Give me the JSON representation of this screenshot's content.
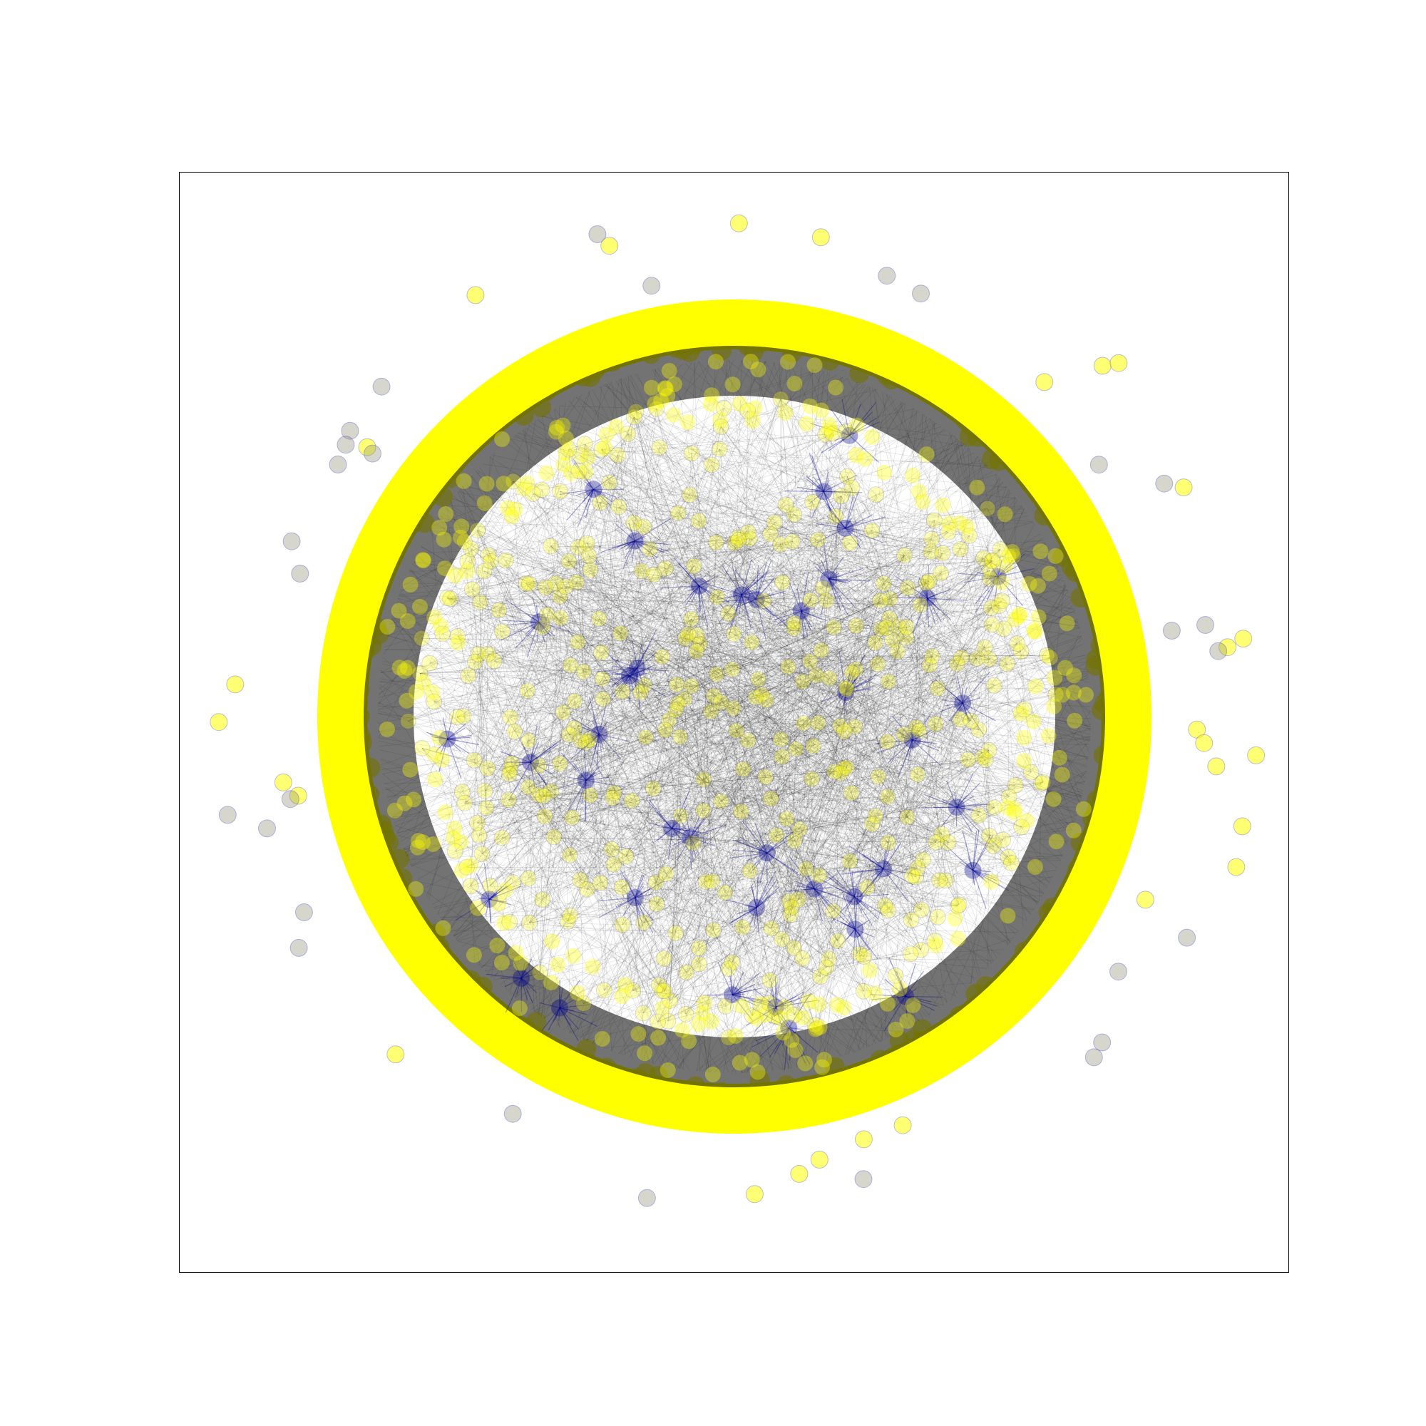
{
  "figure": {
    "kind": "network-graph",
    "axes_visible": false,
    "ticks_visible": false,
    "frame_visible": true
  },
  "colors": {
    "background": "#ffffff",
    "frame": "#000000",
    "edge": "#000000",
    "node_fill": "#ffff00",
    "node_edge": "#0000cc",
    "hub_highlight": "#00008b",
    "isolated_node": "#8a8a70"
  },
  "chart_data": {
    "type": "network",
    "layout": "circular-ring-with-dense-interior",
    "node_style": {
      "shape": "circle",
      "fill": "#ffff00",
      "outline": "#0000cc",
      "alpha": 0.25
    },
    "edge_style": {
      "color": "#000000",
      "alpha": 0.12
    },
    "isolated_node_count": 56,
    "regions": [
      "outer-ring",
      "hub-clusters",
      "interior",
      "outliers"
    ]
  }
}
